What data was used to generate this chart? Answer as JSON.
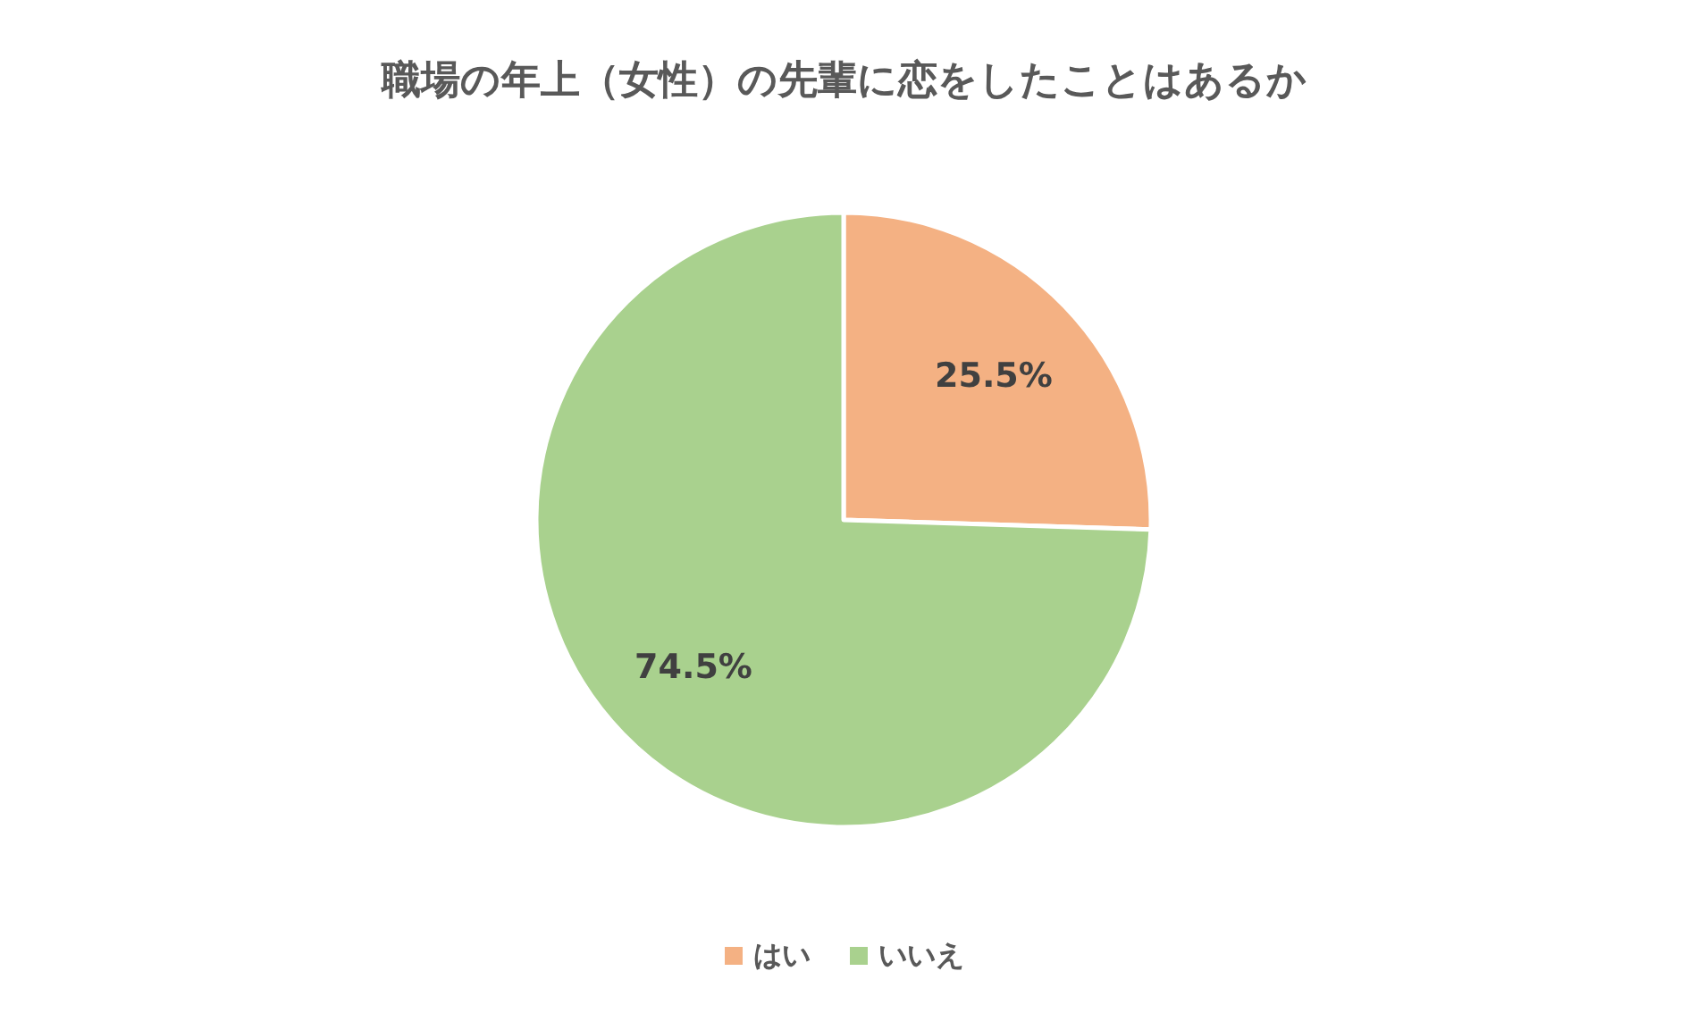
{
  "chart_data": {
    "type": "pie",
    "title": "職場の年上（女性）の先輩に恋をしたことはあるか",
    "categories": [
      "はい",
      "いいえ"
    ],
    "values": [
      25.5,
      74.5
    ],
    "colors": [
      "#f4b183",
      "#a9d18e"
    ],
    "value_labels": [
      "25.5%",
      "74.5%"
    ],
    "legend": "bottom"
  }
}
